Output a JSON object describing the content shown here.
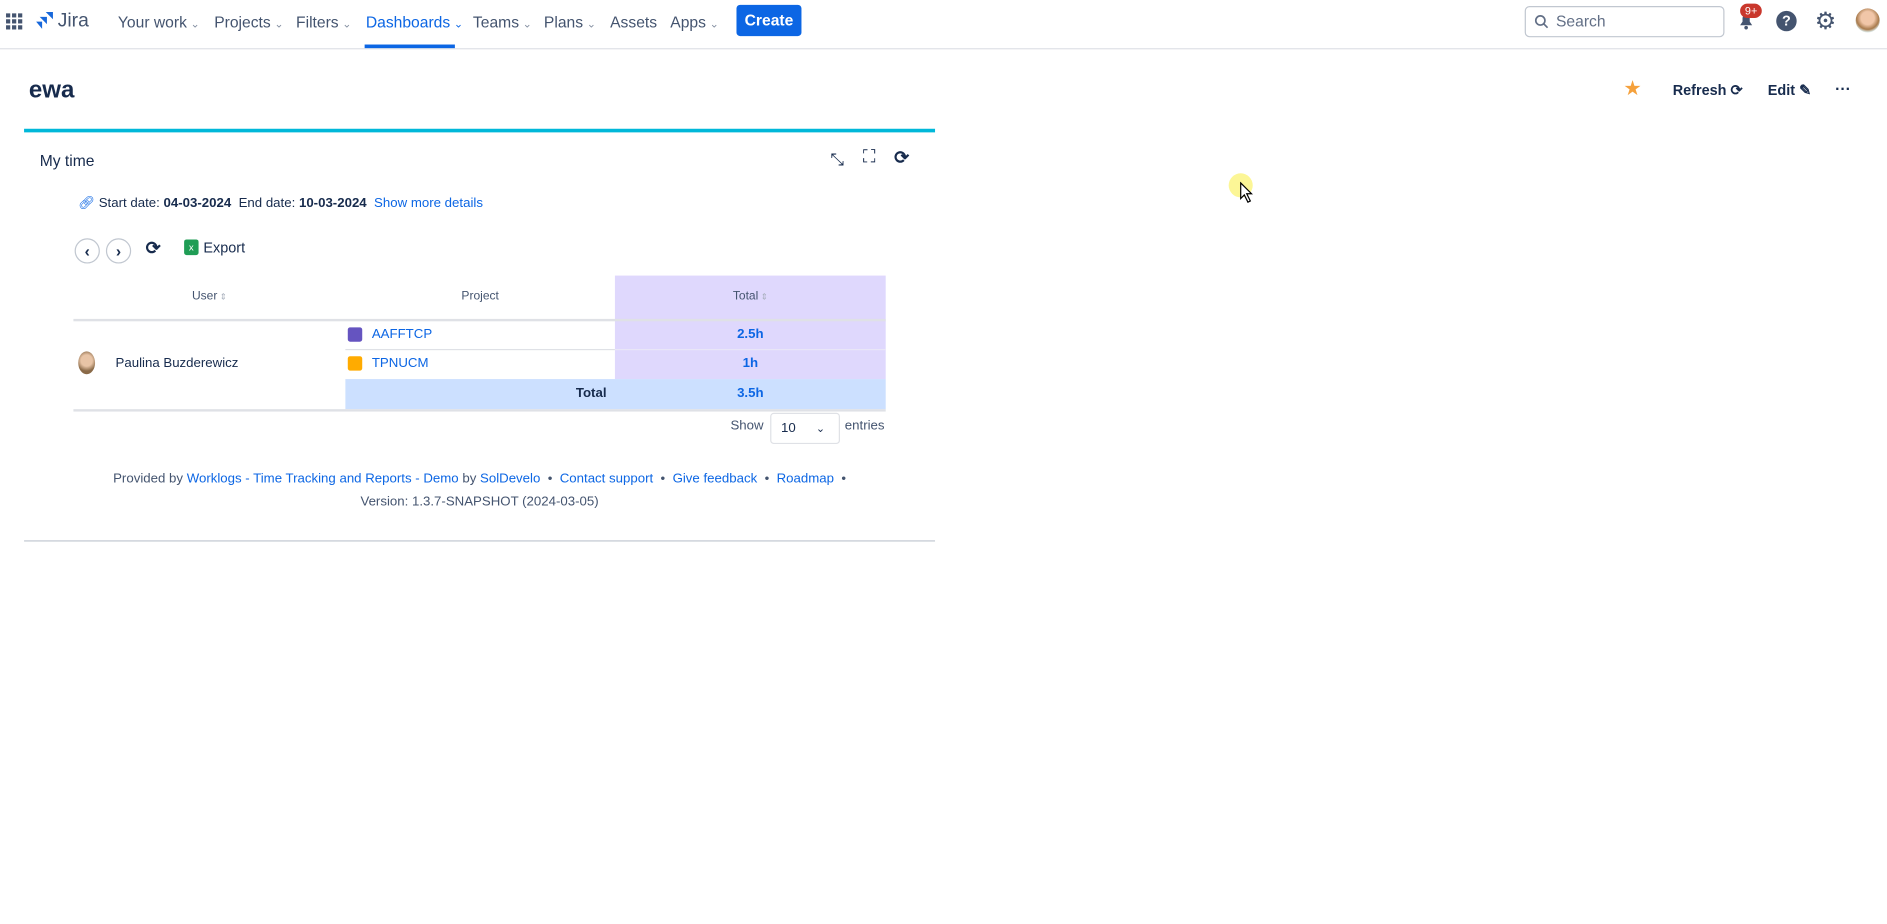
{
  "nav": {
    "logo": "Jira",
    "items": [
      {
        "label": "Your work",
        "dropdown": true
      },
      {
        "label": "Projects",
        "dropdown": true
      },
      {
        "label": "Filters",
        "dropdown": true
      },
      {
        "label": "Dashboards",
        "dropdown": true,
        "active": true
      },
      {
        "label": "Teams",
        "dropdown": true
      },
      {
        "label": "Plans",
        "dropdown": true
      },
      {
        "label": "Assets",
        "dropdown": false
      },
      {
        "label": "Apps",
        "dropdown": true
      }
    ],
    "create_label": "Create",
    "search_placeholder": "Search",
    "notifications_badge": "9+",
    "chevron": "⌄"
  },
  "page": {
    "title": "ewa",
    "refresh_label": "Refresh",
    "edit_label": "Edit",
    "more_label": "···"
  },
  "gadget": {
    "title": "My time",
    "start_label": "Start date:",
    "start_date": "04-03-2024",
    "end_label": "End date:",
    "end_date": "10-03-2024",
    "details_link": "Show more details",
    "export_label": "Export",
    "table": {
      "headers": {
        "user": "User",
        "project": "Project",
        "total": "Total"
      },
      "user": "Paulina Buzderewicz",
      "rows": [
        {
          "project": "AAFFTCP",
          "total": "2.5h"
        },
        {
          "project": "TPNUCM",
          "total": "1h"
        }
      ],
      "total_label": "Total",
      "total_value": "3.5h"
    },
    "show_label": "Show",
    "entries_value": "10",
    "entries_label": "entries",
    "footer": {
      "provided_by": "Provided by",
      "app_link": "Worklogs - Time Tracking and Reports - Demo",
      "by": "by",
      "vendor_link": "SolDevelo",
      "contact": "Contact support",
      "feedback": "Give feedback",
      "roadmap": "Roadmap",
      "bullet": "•",
      "version": "Version: 1.3.7-SNAPSHOT (2024-03-05)"
    }
  },
  "colors": {
    "accent": "#0c66e4",
    "panel_top": "#00b8d9",
    "total_col": "#dfd8fd",
    "total_row": "#cce0ff",
    "star": "#f5a13c",
    "badge": "#c9372c"
  }
}
